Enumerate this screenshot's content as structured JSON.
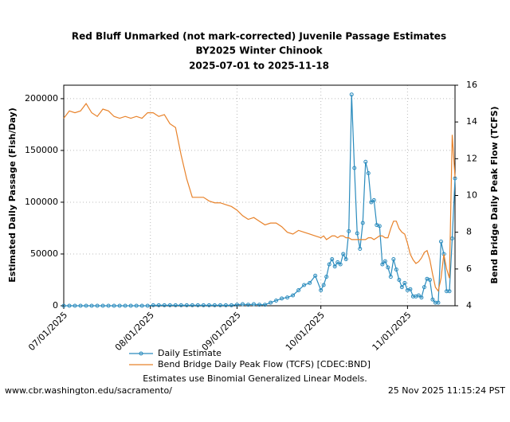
{
  "chart_data": {
    "type": "line",
    "title_lines": [
      "Red Bluff Unmarked (not mark-corrected) Juvenile Passage Estimates",
      "BY2025 Winter Chinook",
      "2025-07-01 to 2025-11-18"
    ],
    "y_label": "Estimated Daily Passage (Fish/Day)",
    "y2_label": "Bend Bridge Daily Peak Flow (TCFS)",
    "note": "Estimates use Binomial Generalized Linear Models.",
    "footer_left": "www.cbr.washington.edu/sacramento/",
    "footer_right": "25 Nov 2025 11:15:24 PST",
    "grid": true,
    "xlim": [
      "2025-07-01",
      "2025-11-18"
    ],
    "xticks": [
      {
        "value": "2025-07-01",
        "label": "07/01/2025"
      },
      {
        "value": "2025-08-01",
        "label": "08/01/2025"
      },
      {
        "value": "2025-09-01",
        "label": "09/01/2025"
      },
      {
        "value": "2025-10-01",
        "label": "10/01/2025"
      },
      {
        "value": "2025-11-01",
        "label": "11/01/2025"
      }
    ],
    "ylim": [
      0,
      213000
    ],
    "yticks": [
      0,
      50000,
      100000,
      150000,
      200000
    ],
    "y2lim": [
      4,
      16
    ],
    "y2ticks": [
      4,
      6,
      8,
      10,
      12,
      14,
      16
    ],
    "x": [
      "2025-07-01",
      "2025-07-03",
      "2025-07-05",
      "2025-07-07",
      "2025-07-09",
      "2025-07-11",
      "2025-07-13",
      "2025-07-15",
      "2025-07-17",
      "2025-07-19",
      "2025-07-21",
      "2025-07-23",
      "2025-07-25",
      "2025-07-27",
      "2025-07-29",
      "2025-07-31",
      "2025-08-02",
      "2025-08-04",
      "2025-08-06",
      "2025-08-08",
      "2025-08-10",
      "2025-08-12",
      "2025-08-14",
      "2025-08-16",
      "2025-08-18",
      "2025-08-20",
      "2025-08-22",
      "2025-08-24",
      "2025-08-26",
      "2025-08-28",
      "2025-08-30",
      "2025-09-01",
      "2025-09-03",
      "2025-09-05",
      "2025-09-07",
      "2025-09-09",
      "2025-09-11",
      "2025-09-13",
      "2025-09-15",
      "2025-09-17",
      "2025-09-19",
      "2025-09-21",
      "2025-09-23",
      "2025-09-25",
      "2025-09-27",
      "2025-09-29",
      "2025-10-01",
      "2025-10-02",
      "2025-10-03",
      "2025-10-04",
      "2025-10-05",
      "2025-10-06",
      "2025-10-07",
      "2025-10-08",
      "2025-10-09",
      "2025-10-10",
      "2025-10-11",
      "2025-10-12",
      "2025-10-13",
      "2025-10-14",
      "2025-10-15",
      "2025-10-16",
      "2025-10-17",
      "2025-10-18",
      "2025-10-19",
      "2025-10-20",
      "2025-10-21",
      "2025-10-22",
      "2025-10-23",
      "2025-10-24",
      "2025-10-25",
      "2025-10-26",
      "2025-10-27",
      "2025-10-28",
      "2025-10-29",
      "2025-10-30",
      "2025-10-31",
      "2025-11-01",
      "2025-11-02",
      "2025-11-03",
      "2025-11-04",
      "2025-11-05",
      "2025-11-06",
      "2025-11-07",
      "2025-11-08",
      "2025-11-09",
      "2025-11-10",
      "2025-11-11",
      "2025-11-12",
      "2025-11-13",
      "2025-11-14",
      "2025-11-15",
      "2025-11-16",
      "2025-11-17",
      "2025-11-18"
    ],
    "series": [
      {
        "name": "Daily Estimate",
        "color": "#2a8bbd",
        "markers": true,
        "values": [
          0,
          0,
          0,
          0,
          0,
          0,
          0,
          0,
          0,
          0,
          0,
          0,
          0,
          0,
          0,
          0,
          500,
          500,
          500,
          500,
          500,
          500,
          500,
          500,
          500,
          500,
          500,
          500,
          500,
          500,
          500,
          1000,
          1500,
          1000,
          1500,
          1000,
          1000,
          3000,
          5000,
          7000,
          8000,
          10000,
          15000,
          20000,
          22000,
          29000,
          15000,
          20000,
          28000,
          40000,
          45000,
          38000,
          42000,
          40000,
          50000,
          45000,
          72000,
          204000,
          133000,
          70000,
          55000,
          80000,
          139000,
          128000,
          100000,
          102000,
          78000,
          77000,
          40000,
          43000,
          37000,
          28000,
          45000,
          35000,
          25000,
          18000,
          22000,
          15000,
          16000,
          9000,
          9000,
          10000,
          8000,
          18000,
          26000,
          25000,
          6000,
          3000,
          3000,
          62000,
          50000,
          14000,
          14000,
          65000,
          123000
        ]
      },
      {
        "name": "Bend Bridge Daily Peak Flow (TCFS) [CDEC:BND]",
        "color": "#e8822a",
        "axis": "y2",
        "markers": false,
        "values": [
          14.2,
          14.6,
          14.5,
          14.6,
          15.0,
          14.5,
          14.3,
          14.7,
          14.6,
          14.3,
          14.2,
          14.3,
          14.2,
          14.3,
          14.2,
          14.5,
          14.5,
          14.3,
          14.4,
          13.9,
          13.7,
          12.2,
          10.9,
          9.9,
          9.9,
          9.9,
          9.7,
          9.6,
          9.6,
          9.5,
          9.4,
          9.2,
          8.9,
          8.7,
          8.8,
          8.6,
          8.4,
          8.5,
          8.5,
          8.3,
          8.0,
          7.9,
          8.1,
          8.0,
          7.9,
          7.8,
          7.7,
          7.8,
          7.6,
          7.7,
          7.8,
          7.8,
          7.7,
          7.8,
          7.8,
          7.7,
          7.7,
          7.6,
          7.6,
          7.6,
          7.6,
          7.6,
          7.6,
          7.7,
          7.7,
          7.6,
          7.7,
          7.8,
          7.8,
          7.7,
          7.7,
          8.2,
          8.6,
          8.6,
          8.2,
          8.0,
          7.9,
          7.4,
          6.8,
          6.5,
          6.3,
          6.4,
          6.6,
          6.9,
          7.0,
          6.5,
          5.7,
          5.0,
          4.8,
          5.5,
          6.8,
          6.0,
          5.5,
          13.3,
          11.0
        ]
      }
    ]
  }
}
